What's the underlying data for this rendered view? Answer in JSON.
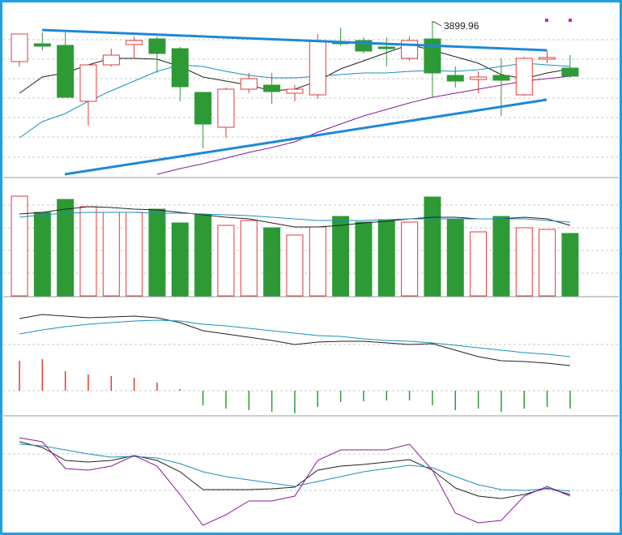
{
  "chart_data": [
    {
      "type": "candlestick",
      "up_color": "#e03a3a",
      "down_color": "#2e9a36",
      "ylim": [
        3709,
        3922
      ],
      "open": [
        3851,
        3873,
        3871,
        3802,
        3847,
        3872,
        3879,
        3867,
        3813,
        3770,
        3817,
        3822,
        3812,
        3810,
        3875,
        3877,
        3869,
        3855,
        3879,
        3834,
        3829,
        3834,
        3810,
        3854,
        3843
      ],
      "high": [
        3885,
        3887,
        3887,
        3847,
        3867,
        3882,
        3882,
        3869,
        3813,
        3819,
        3837,
        3837,
        3822,
        3885,
        3893,
        3881,
        3881,
        3882,
        3899.96,
        3845,
        3839,
        3855,
        3857,
        3865,
        3859
      ],
      "low": [
        3845,
        3865,
        3807,
        3772,
        3845,
        3855,
        3837,
        3802,
        3744,
        3757,
        3812,
        3799,
        3802,
        3805,
        3871,
        3861,
        3845,
        3852,
        3807,
        3819,
        3812,
        3784,
        3809,
        3849,
        3831
      ],
      "close": [
        3885,
        3870,
        3807,
        3847,
        3859,
        3877,
        3861,
        3820,
        3774,
        3817,
        3830,
        3814,
        3817,
        3877,
        3873,
        3864,
        3867,
        3877,
        3837,
        3827,
        3832,
        3828,
        3855,
        3856,
        3833
      ],
      "lines": [
        {
          "color": "#222222",
          "values": [
            3812,
            3832,
            3837,
            3847,
            3855,
            3855,
            3854,
            3845,
            3832,
            3827,
            3822,
            3815,
            3817,
            3827,
            3842,
            3852,
            3862,
            3872,
            3865,
            3857,
            3849,
            3835,
            3830,
            3837,
            3842
          ]
        },
        {
          "color": "#1a8fc0",
          "values": [
            3757,
            3777,
            3787,
            3802,
            3815,
            3827,
            3839,
            3847,
            3845,
            3839,
            3834,
            3831,
            3831,
            3833,
            3835,
            3837,
            3837,
            3839,
            3840,
            3839,
            3841,
            3845,
            3849,
            3847,
            3845
          ]
        },
        {
          "color": "#8a1a9a",
          "values": [
            null,
            null,
            null,
            null,
            null,
            null,
            3712,
            3719,
            3725,
            3732,
            3739,
            3745,
            3752,
            3764,
            3774,
            3784,
            3792,
            3800,
            3807,
            3812,
            3817,
            3822,
            3827,
            3830,
            3833
          ]
        }
      ]
    },
    {
      "type": "volume",
      "up_color": "#e03a3a",
      "down_color": "#2e9a36",
      "ylim": [
        0,
        143
      ],
      "values": [
        123,
        103,
        119,
        110,
        103,
        103,
        107,
        90,
        100,
        87,
        93,
        84,
        75,
        85,
        98,
        91,
        94,
        91,
        122,
        95,
        79,
        98,
        84,
        82,
        77
      ],
      "lines": [
        {
          "color": "#222222",
          "values": [
            101,
            103,
            107,
            110,
            109,
            107,
            106,
            103,
            100,
            97,
            95,
            90,
            85,
            85,
            87,
            90,
            92,
            95,
            97,
            97,
            95,
            95,
            97,
            95,
            87
          ]
        },
        {
          "color": "#1a8fc0",
          "values": [
            97,
            100,
            102,
            103,
            103,
            103,
            102,
            102,
            101,
            100,
            99,
            97,
            95,
            93,
            93,
            93,
            94,
            95,
            95,
            95,
            95,
            95,
            95,
            93,
            91
          ]
        }
      ]
    },
    {
      "type": "macd",
      "up_color": "#e03a3a",
      "down_color": "#2e9a36",
      "ylim": [
        -30,
        114
      ],
      "values": [
        37,
        39,
        24,
        20,
        18,
        16,
        10,
        2,
        -18,
        -22,
        -24,
        -26,
        -28,
        -20,
        -14,
        -13,
        -12,
        -12,
        -18,
        -24,
        -22,
        -26,
        -22,
        -20,
        -22
      ],
      "lines": [
        {
          "color": "#222222",
          "values": [
            89,
            94,
            92,
            90,
            91,
            92,
            90,
            84,
            74,
            70,
            66,
            62,
            57,
            60,
            61,
            61,
            59,
            57,
            58,
            50,
            42,
            37,
            36,
            34,
            31
          ]
        },
        {
          "color": "#1a8fc0",
          "values": [
            70,
            75,
            79,
            82,
            84,
            86,
            87,
            86,
            82,
            80,
            77,
            74,
            71,
            68,
            67,
            64,
            62,
            61,
            59,
            56,
            53,
            50,
            47,
            45,
            42
          ]
        }
      ]
    },
    {
      "type": "line",
      "ylim": [
        0,
        142
      ],
      "lines": [
        {
          "color": "#222222",
          "values": [
            112,
            105,
            89,
            87,
            89,
            95,
            89,
            75,
            53,
            53,
            53,
            54,
            56,
            77,
            82,
            84,
            87,
            90,
            77,
            55,
            45,
            42,
            47,
            55,
            47
          ]
        },
        {
          "color": "#1a8fc0",
          "values": [
            109,
            107,
            102,
            97,
            93,
            94,
            92,
            85,
            75,
            69,
            65,
            61,
            57,
            63,
            69,
            75,
            79,
            83,
            80,
            69,
            59,
            53,
            52,
            54,
            51
          ]
        },
        {
          "color": "#8a1a9a",
          "values": [
            117,
            112,
            79,
            77,
            82,
            95,
            82,
            47,
            9,
            22,
            39,
            39,
            45,
            89,
            102,
            102,
            102,
            109,
            77,
            24,
            12,
            15,
            45,
            57,
            45
          ]
        }
      ]
    }
  ]
}
